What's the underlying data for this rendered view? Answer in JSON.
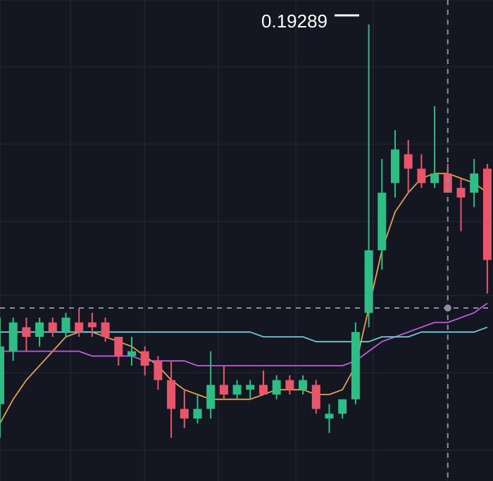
{
  "chart_data": {
    "type": "candlestick",
    "annotation": {
      "text": "0.19289",
      "value": 0.19289
    },
    "ylim": [
      0.096,
      0.1961
    ],
    "grid": true,
    "colors": {
      "background": "#141721",
      "grid": "#252a36",
      "up": "#2ebd85",
      "down": "#e8566c",
      "ma_fast": "#e3a04f",
      "ma_mid": "#c05ce0",
      "ma_slow": "#6fc9d6",
      "crosshair": "#8a8f9c"
    },
    "crosshair": {
      "price": 0.132,
      "candle_index": 34
    },
    "candles": [
      {
        "o": 0.112,
        "h": 0.13,
        "l": 0.105,
        "c": 0.124
      },
      {
        "o": 0.123,
        "h": 0.13,
        "l": 0.121,
        "c": 0.129
      },
      {
        "o": 0.128,
        "h": 0.13,
        "l": 0.123,
        "c": 0.126
      },
      {
        "o": 0.126,
        "h": 0.13,
        "l": 0.124,
        "c": 0.129
      },
      {
        "o": 0.129,
        "h": 0.13,
        "l": 0.126,
        "c": 0.127
      },
      {
        "o": 0.127,
        "h": 0.131,
        "l": 0.126,
        "c": 0.13
      },
      {
        "o": 0.129,
        "h": 0.132,
        "l": 0.126,
        "c": 0.127
      },
      {
        "o": 0.129,
        "h": 0.131,
        "l": 0.126,
        "c": 0.128
      },
      {
        "o": 0.129,
        "h": 0.13,
        "l": 0.125,
        "c": 0.126
      },
      {
        "o": 0.126,
        "h": 0.126,
        "l": 0.12,
        "c": 0.122
      },
      {
        "o": 0.122,
        "h": 0.126,
        "l": 0.12,
        "c": 0.123
      },
      {
        "o": 0.123,
        "h": 0.124,
        "l": 0.118,
        "c": 0.12
      },
      {
        "o": 0.121,
        "h": 0.122,
        "l": 0.115,
        "c": 0.117
      },
      {
        "o": 0.117,
        "h": 0.121,
        "l": 0.105,
        "c": 0.111
      },
      {
        "o": 0.111,
        "h": 0.115,
        "l": 0.107,
        "c": 0.109
      },
      {
        "o": 0.109,
        "h": 0.114,
        "l": 0.108,
        "c": 0.111
      },
      {
        "o": 0.111,
        "h": 0.123,
        "l": 0.109,
        "c": 0.116
      },
      {
        "o": 0.116,
        "h": 0.12,
        "l": 0.113,
        "c": 0.114
      },
      {
        "o": 0.114,
        "h": 0.117,
        "l": 0.113,
        "c": 0.116
      },
      {
        "o": 0.115,
        "h": 0.117,
        "l": 0.113,
        "c": 0.116
      },
      {
        "o": 0.116,
        "h": 0.119,
        "l": 0.114,
        "c": 0.114
      },
      {
        "o": 0.114,
        "h": 0.118,
        "l": 0.113,
        "c": 0.117
      },
      {
        "o": 0.117,
        "h": 0.118,
        "l": 0.114,
        "c": 0.115
      },
      {
        "o": 0.115,
        "h": 0.118,
        "l": 0.114,
        "c": 0.117
      },
      {
        "o": 0.116,
        "h": 0.117,
        "l": 0.11,
        "c": 0.111
      },
      {
        "o": 0.109,
        "h": 0.112,
        "l": 0.106,
        "c": 0.11
      },
      {
        "o": 0.11,
        "h": 0.113,
        "l": 0.109,
        "c": 0.113
      },
      {
        "o": 0.113,
        "h": 0.129,
        "l": 0.112,
        "c": 0.127
      },
      {
        "o": 0.131,
        "h": 0.191,
        "l": 0.128,
        "c": 0.144
      },
      {
        "o": 0.144,
        "h": 0.163,
        "l": 0.14,
        "c": 0.156
      },
      {
        "o": 0.158,
        "h": 0.169,
        "l": 0.155,
        "c": 0.165
      },
      {
        "o": 0.164,
        "h": 0.167,
        "l": 0.156,
        "c": 0.161
      },
      {
        "o": 0.161,
        "h": 0.164,
        "l": 0.157,
        "c": 0.158
      },
      {
        "o": 0.158,
        "h": 0.174,
        "l": 0.157,
        "c": 0.16
      },
      {
        "o": 0.16,
        "h": 0.162,
        "l": 0.156,
        "c": 0.156
      },
      {
        "o": 0.157,
        "h": 0.159,
        "l": 0.148,
        "c": 0.155
      },
      {
        "o": 0.156,
        "h": 0.163,
        "l": 0.153,
        "c": 0.16
      },
      {
        "o": 0.161,
        "h": 0.162,
        "l": 0.135,
        "c": 0.142
      }
    ],
    "series": [
      {
        "values": [
          0.108,
          0.113,
          0.117,
          0.12,
          0.123,
          0.126,
          0.127,
          0.127,
          0.126,
          0.125,
          0.124,
          0.122,
          0.12,
          0.117,
          0.115,
          0.114,
          0.113,
          0.113,
          0.113,
          0.113,
          0.114,
          0.115,
          0.115,
          0.115,
          0.114,
          0.114,
          0.115,
          0.12,
          0.132,
          0.144,
          0.152,
          0.156,
          0.159,
          0.16,
          0.16,
          0.159,
          0.158,
          0.156
        ]
      },
      {
        "values": [
          0.123,
          0.123,
          0.123,
          0.123,
          0.123,
          0.123,
          0.123,
          0.122,
          0.122,
          0.122,
          0.122,
          0.121,
          0.121,
          0.121,
          0.121,
          0.12,
          0.12,
          0.12,
          0.12,
          0.12,
          0.12,
          0.12,
          0.12,
          0.12,
          0.12,
          0.12,
          0.12,
          0.121,
          0.123,
          0.125,
          0.126,
          0.127,
          0.128,
          0.129,
          0.129,
          0.13,
          0.131,
          0.133
        ]
      },
      {
        "values": [
          0.127,
          0.127,
          0.127,
          0.127,
          0.127,
          0.127,
          0.127,
          0.127,
          0.127,
          0.127,
          0.127,
          0.127,
          0.127,
          0.127,
          0.127,
          0.127,
          0.127,
          0.127,
          0.127,
          0.127,
          0.126,
          0.126,
          0.126,
          0.126,
          0.125,
          0.125,
          0.125,
          0.125,
          0.125,
          0.126,
          0.126,
          0.126,
          0.127,
          0.127,
          0.127,
          0.127,
          0.127,
          0.128
        ]
      }
    ]
  }
}
